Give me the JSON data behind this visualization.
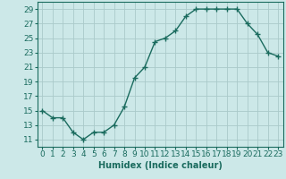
{
  "x": [
    0,
    1,
    2,
    3,
    4,
    5,
    6,
    7,
    8,
    9,
    10,
    11,
    12,
    13,
    14,
    15,
    16,
    17,
    18,
    19,
    20,
    21,
    22,
    23
  ],
  "y": [
    15,
    14,
    14,
    12,
    11,
    12,
    12,
    13,
    15.5,
    19.5,
    21,
    24.5,
    25,
    26,
    28,
    29,
    29,
    29,
    29,
    29,
    27,
    25.5,
    23,
    22.5
  ],
  "line_color": "#1a6b5e",
  "marker": "+",
  "bg_color": "#cce8e8",
  "grid_color": "#aacaca",
  "xlabel": "Humidex (Indice chaleur)",
  "ylim": [
    10,
    30
  ],
  "yticks": [
    11,
    13,
    15,
    17,
    19,
    21,
    23,
    25,
    27,
    29
  ],
  "xticks": [
    0,
    1,
    2,
    3,
    4,
    5,
    6,
    7,
    8,
    9,
    10,
    11,
    12,
    13,
    14,
    15,
    16,
    17,
    18,
    19,
    20,
    21,
    22,
    23
  ],
  "xlabel_fontsize": 7,
  "tick_fontsize": 6.5,
  "line_width": 1.0,
  "marker_size": 4
}
